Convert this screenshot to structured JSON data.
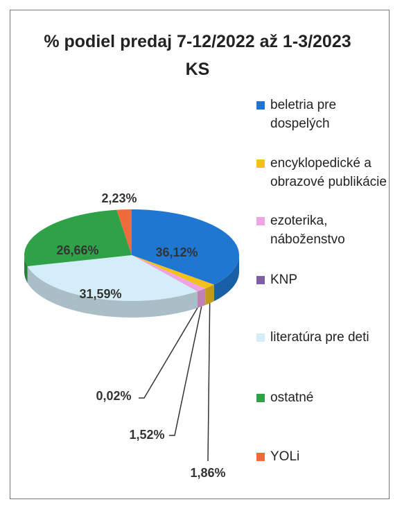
{
  "chart_data": {
    "type": "pie",
    "title": "% podiel predaj 7-12/2022 až 1-3/2023 KS",
    "categories": [
      "beletria pre dospelých",
      "encyklopedické a obrazové publikácie",
      "ezoterika, náboženstvo",
      "KNP",
      "literatúra pre deti",
      "ostatné",
      "YOLi"
    ],
    "values": [
      36.12,
      1.86,
      1.52,
      0.02,
      31.59,
      26.66,
      2.23
    ],
    "value_labels": [
      "36,12%",
      "1,86%",
      "1,52%",
      "0,02%",
      "31,59%",
      "26,66%",
      "2,23%"
    ],
    "colors": [
      "#1f77d2",
      "#f4c01a",
      "#f0a3e2",
      "#7d5fa6",
      "#d4eef9",
      "#2fa248",
      "#ef6b3a"
    ],
    "legend": "right"
  }
}
